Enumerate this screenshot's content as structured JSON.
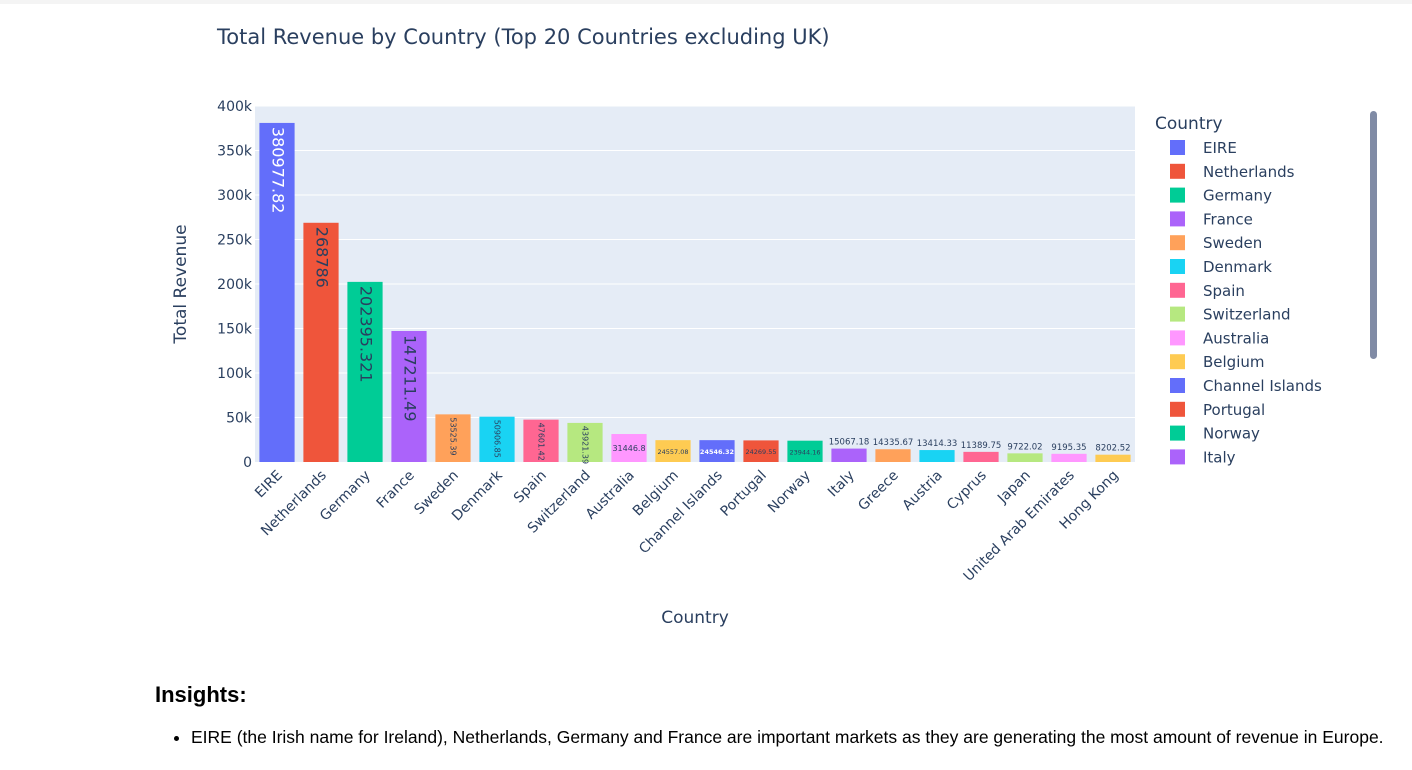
{
  "chart_data": {
    "type": "bar",
    "title": "Total Revenue by Country (Top 20 Countries excluding UK)",
    "xlabel": "Country",
    "ylabel": "Total Revenue",
    "ylim": [
      0,
      400000
    ],
    "yticks": [
      0,
      50000,
      100000,
      150000,
      200000,
      250000,
      300000,
      350000,
      400000
    ],
    "ytick_labels": [
      "0",
      "50k",
      "100k",
      "150k",
      "200k",
      "250k",
      "300k",
      "350k",
      "400k"
    ],
    "grid": true,
    "legend_title": "Country",
    "legend_position": "right",
    "categories": [
      "EIRE",
      "Netherlands",
      "Germany",
      "France",
      "Sweden",
      "Denmark",
      "Spain",
      "Switzerland",
      "Australia",
      "Belgium",
      "Channel Islands",
      "Portugal",
      "Norway",
      "Italy",
      "Greece",
      "Austria",
      "Cyprus",
      "Japan",
      "United Arab Emirates",
      "Hong Kong"
    ],
    "values": [
      380977.82,
      268786,
      202395.321,
      147211.49,
      53525.39,
      50906.85,
      47601.42,
      43921.39,
      31446.8,
      24557.08,
      24546.32,
      24269.55,
      23944.16,
      15067.18,
      14335.67,
      13414.33,
      11389.75,
      9722.02,
      9195.35,
      8202.52
    ],
    "labels": [
      "380977.82",
      "268786",
      "202395.321",
      "147211.49",
      "53525.39",
      "50906.85",
      "47601.42",
      "43921.39",
      "31446.8",
      "24557.08",
      "24546.32",
      "24269.55",
      "23944.16",
      "15067.18",
      "14335.67",
      "13414.33",
      "11389.75",
      "9722.02",
      "9195.35",
      "8202.52"
    ],
    "colors": [
      "#636efa",
      "#EF553B",
      "#00cc96",
      "#ab63fa",
      "#FFA15A",
      "#19d3f3",
      "#FF6692",
      "#B6E880",
      "#FF97FF",
      "#FECB52",
      "#636efa",
      "#EF553B",
      "#00cc96",
      "#ab63fa",
      "#FFA15A",
      "#19d3f3",
      "#FF6692",
      "#B6E880",
      "#FF97FF",
      "#FECB52"
    ],
    "legend_items": [
      "EIRE",
      "Netherlands",
      "Germany",
      "France",
      "Sweden",
      "Denmark",
      "Spain",
      "Switzerland",
      "Australia",
      "Belgium",
      "Channel Islands",
      "Portugal",
      "Norway",
      "Italy"
    ]
  },
  "insights": {
    "title": "Insights:",
    "items": [
      "EIRE (the Irish name for Ireland), Netherlands, Germany and France are important markets as they are generating the most amount of revenue in Europe."
    ]
  }
}
